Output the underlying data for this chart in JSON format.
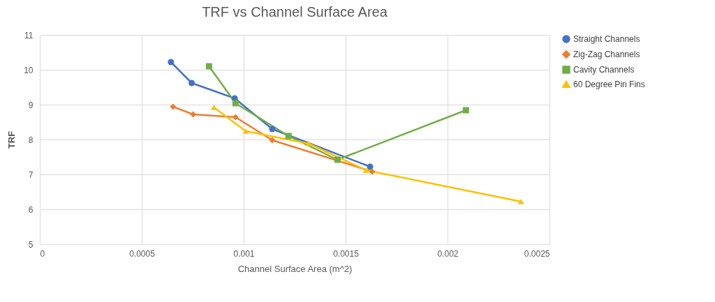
{
  "chart_data": {
    "type": "line",
    "title": "TRF vs Channel Surface Area",
    "xlabel": "Channel Surface Area (m^2)",
    "ylabel": "TRF",
    "xlim": [
      0,
      0.0025
    ],
    "xticks": [
      0,
      0.0005,
      0.001,
      0.0015,
      0.002,
      0.0025
    ],
    "ylim": [
      5,
      11
    ],
    "yticks": [
      5,
      6,
      7,
      8,
      9,
      10,
      11
    ],
    "grid": true,
    "legend": "right",
    "series": [
      {
        "name": "Straight Channels",
        "color": "#4472c4",
        "marker": "circle",
        "x": [
          0.000643,
          0.000745,
          0.000956,
          0.00114,
          0.00162
        ],
        "values": [
          10.22,
          9.62,
          9.18,
          8.3,
          7.22
        ]
      },
      {
        "name": "Zig-Zag Channels",
        "color": "#ed7d31",
        "marker": "diamond",
        "x": [
          0.000653,
          0.000752,
          0.00096,
          0.00114,
          0.00163
        ],
        "values": [
          8.94,
          8.72,
          8.64,
          7.98,
          7.08
        ]
      },
      {
        "name": "Cavity Channels",
        "color": "#70ad47",
        "marker": "square",
        "x": [
          0.00083,
          0.00096,
          0.00122,
          0.00146,
          0.00209
        ],
        "values": [
          10.1,
          9.04,
          8.1,
          7.42,
          8.84
        ]
      },
      {
        "name": "60 Degree Pin Fins",
        "color": "#ffc000",
        "marker": "triangle",
        "x": [
          0.000854,
          0.00101,
          0.00132,
          0.0016,
          0.00236
        ],
        "values": [
          8.92,
          8.24,
          7.88,
          7.12,
          6.22
        ]
      }
    ]
  }
}
